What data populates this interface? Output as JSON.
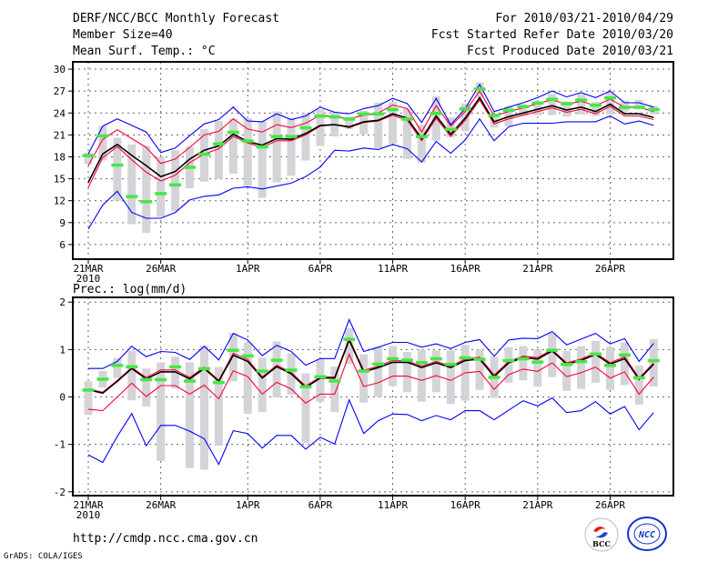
{
  "header": {
    "title": "DERF/NCC/BCC Monthly Forecast",
    "member_size": "Member Size=40",
    "period": "For 2010/03/21-2010/04/29",
    "started": "Fcst Started Refer Date 2010/03/20",
    "produced": "Fcst Produced Date 2010/03/21"
  },
  "footer": {
    "url": "http://cmdp.ncc.cma.gov.cn",
    "credit": "GrADS: COLA/IGES",
    "logo_bcc": "BCC",
    "logo_ncc": "NCC"
  },
  "colors": {
    "max_min": "#0000ff",
    "spread": "#ff0033",
    "mean": "#000000",
    "obs": "#44e844",
    "range": "#d4d4d8"
  },
  "chart_data": [
    {
      "type": "line",
      "title": "Mean Surf. Temp.: °C",
      "ylabel": "°C",
      "ylim": [
        4,
        31
      ],
      "yticks": [
        6,
        9,
        12,
        15,
        18,
        21,
        24,
        27,
        30
      ],
      "x_tick_days": [
        0,
        5,
        11,
        16,
        21,
        26,
        31,
        36
      ],
      "x_tick_labels": [
        "21MAR",
        "26MAR",
        "1APR",
        "6APR",
        "11APR",
        "16APR",
        "21APR",
        "26APR"
      ],
      "year_label": "2010",
      "grid": true,
      "series": [
        {
          "name": "max",
          "color": "#0000ff",
          "values": [
            18.4,
            22.2,
            23.2,
            22.3,
            21.4,
            18.6,
            19.2,
            20.9,
            22.5,
            23.1,
            24.8,
            22.9,
            22.8,
            23.9,
            23.1,
            23.6,
            24.8,
            24.1,
            23.9,
            24.6,
            25.0,
            26.0,
            25.3,
            22.7,
            26.0,
            22.4,
            24.6,
            27.9,
            24.2,
            24.8,
            25.4,
            26.1,
            27.0,
            26.2,
            26.8,
            26.1,
            27.0,
            25.4,
            25.4,
            24.8
          ]
        },
        {
          "name": "upper",
          "color": "#ff0033",
          "values": [
            16.8,
            20.4,
            21.7,
            20.5,
            19.3,
            17.1,
            17.7,
            19.3,
            21.0,
            21.5,
            23.2,
            21.8,
            21.4,
            22.4,
            22.0,
            22.6,
            23.7,
            23.5,
            23.2,
            23.7,
            24.0,
            25.1,
            24.6,
            21.4,
            25.0,
            22.2,
            24.2,
            27.0,
            23.6,
            24.2,
            24.7,
            25.3,
            25.8,
            25.2,
            25.6,
            25.0,
            25.9,
            24.8,
            24.8,
            24.2
          ]
        },
        {
          "name": "mean",
          "color": "#000000",
          "values": [
            14.5,
            18.4,
            19.7,
            18.2,
            16.8,
            15.3,
            16.0,
            17.7,
            18.9,
            19.5,
            21.1,
            20.1,
            19.6,
            20.5,
            20.4,
            21.2,
            22.3,
            22.4,
            22.1,
            22.8,
            23.0,
            23.9,
            23.3,
            20.5,
            23.6,
            21.1,
            23.3,
            26.1,
            22.8,
            23.5,
            24.0,
            24.5,
            25.0,
            24.4,
            24.8,
            24.2,
            25.2,
            23.9,
            23.9,
            23.4
          ]
        },
        {
          "name": "lower",
          "color": "#ff0033",
          "values": [
            13.8,
            17.9,
            19.4,
            17.6,
            15.9,
            14.7,
            15.5,
            17.2,
            18.4,
            19.1,
            20.8,
            19.9,
            19.3,
            20.2,
            20.2,
            21.0,
            22.2,
            22.4,
            22.0,
            22.7,
            22.9,
            23.7,
            23.0,
            20.2,
            23.3,
            20.8,
            23.0,
            25.8,
            22.5,
            23.2,
            23.7,
            24.2,
            24.7,
            24.1,
            24.5,
            23.9,
            24.9,
            23.6,
            23.6,
            23.1
          ]
        },
        {
          "name": "min",
          "color": "#0000ff",
          "values": [
            8.1,
            11.4,
            13.3,
            10.4,
            9.6,
            9.6,
            10.4,
            12.1,
            12.6,
            12.8,
            13.7,
            13.9,
            13.6,
            14.0,
            14.4,
            15.3,
            16.6,
            18.9,
            18.8,
            19.2,
            19.0,
            19.7,
            19.1,
            17.3,
            20.1,
            18.5,
            20.3,
            23.2,
            20.2,
            22.1,
            22.6,
            22.6,
            22.6,
            22.8,
            22.8,
            22.8,
            23.6,
            22.5,
            22.9,
            22.3
          ]
        }
      ],
      "obs": [
        18.2,
        20.9,
        16.9,
        12.6,
        11.9,
        13.0,
        14.2,
        16.6,
        18.4,
        19.8,
        21.4,
        20.2,
        19.4,
        20.8,
        20.8,
        22.0,
        23.6,
        23.5,
        23.2,
        23.9,
        23.9,
        24.5,
        23.2,
        20.8,
        24.0,
        21.8,
        24.6,
        27.3,
        23.7,
        24.4,
        24.9,
        25.4,
        25.9,
        25.3,
        25.8,
        25.1,
        26.1,
        24.8,
        24.8,
        24.5
      ],
      "ranges": [
        [
          17.0,
          18.6
        ],
        [
          17.5,
          22.2
        ],
        [
          12.0,
          20.6
        ],
        [
          8.8,
          19.7
        ],
        [
          7.6,
          19.5
        ],
        [
          9.8,
          18.0
        ],
        [
          10.6,
          18.9
        ],
        [
          13.7,
          19.4
        ],
        [
          14.6,
          21.8
        ],
        [
          15.0,
          22.9
        ],
        [
          15.7,
          23.2
        ],
        [
          14.0,
          23.3
        ],
        [
          12.4,
          22.8
        ],
        [
          14.5,
          24.2
        ],
        [
          15.4,
          23.3
        ],
        [
          17.5,
          24.0
        ],
        [
          19.5,
          24.5
        ],
        [
          20.8,
          24.2
        ],
        [
          21.8,
          23.5
        ],
        [
          21.1,
          24.3
        ],
        [
          19.2,
          25.4
        ],
        [
          19.8,
          25.5
        ],
        [
          17.7,
          24.6
        ],
        [
          17.2,
          22.4
        ],
        [
          20.2,
          26.3
        ],
        [
          20.7,
          23.4
        ],
        [
          21.5,
          25.3
        ],
        [
          26.1,
          28.2
        ],
        [
          22.0,
          23.9
        ],
        [
          22.2,
          24.9
        ],
        [
          23.6,
          25.2
        ],
        [
          23.7,
          25.5
        ],
        [
          23.7,
          26.6
        ],
        [
          23.5,
          25.6
        ],
        [
          23.8,
          26.6
        ],
        [
          23.6,
          25.5
        ],
        [
          23.8,
          26.9
        ],
        [
          24.2,
          25.7
        ],
        [
          24.6,
          25.8
        ],
        [
          23.8,
          25.0
        ]
      ]
    },
    {
      "type": "line",
      "title": "Prec.: log(mm/d)",
      "ylabel": "log(mm/d)",
      "ylim": [
        -2.08,
        2.1
      ],
      "yticks": [
        -2,
        -1,
        0,
        1,
        2
      ],
      "x_tick_days": [
        0,
        5,
        11,
        16,
        21,
        26,
        31,
        36
      ],
      "x_tick_labels": [
        "21MAR",
        "26MAR",
        "1APR",
        "6APR",
        "11APR",
        "16APR",
        "21APR",
        "26APR"
      ],
      "year_label": "2010",
      "grid": true,
      "series": [
        {
          "name": "max",
          "color": "#0000ff",
          "values": [
            0.6,
            0.6,
            0.75,
            1.07,
            0.85,
            0.96,
            0.94,
            0.79,
            1.07,
            0.78,
            1.34,
            1.2,
            0.87,
            1.09,
            0.96,
            0.67,
            0.81,
            0.81,
            1.63,
            0.96,
            1.05,
            1.15,
            1.15,
            1.05,
            1.12,
            1.02,
            1.15,
            1.21,
            0.86,
            1.2,
            1.24,
            1.23,
            1.38,
            1.1,
            1.22,
            1.34,
            1.12,
            1.23,
            0.75,
            1.13
          ]
        },
        {
          "name": "upper",
          "color": "#ff0033",
          "values": [
            0.17,
            0.1,
            0.35,
            0.62,
            0.41,
            0.57,
            0.57,
            0.41,
            0.63,
            0.35,
            0.92,
            0.79,
            0.42,
            0.67,
            0.52,
            0.23,
            0.42,
            0.42,
            1.23,
            0.56,
            0.65,
            0.77,
            0.76,
            0.65,
            0.75,
            0.65,
            0.8,
            0.84,
            0.46,
            0.75,
            0.86,
            0.83,
            1.0,
            0.72,
            0.8,
            0.93,
            0.72,
            0.85,
            0.4,
            0.72
          ]
        },
        {
          "name": "mean",
          "color": "#000000",
          "values": [
            0.15,
            0.08,
            0.33,
            0.6,
            0.38,
            0.53,
            0.53,
            0.38,
            0.6,
            0.33,
            0.88,
            0.75,
            0.4,
            0.64,
            0.49,
            0.2,
            0.4,
            0.4,
            1.2,
            0.53,
            0.62,
            0.73,
            0.73,
            0.62,
            0.72,
            0.62,
            0.77,
            0.8,
            0.43,
            0.72,
            0.83,
            0.8,
            0.97,
            0.69,
            0.77,
            0.9,
            0.69,
            0.81,
            0.37,
            0.69
          ]
        },
        {
          "name": "lower",
          "color": "#ff0033",
          "values": [
            -0.26,
            -0.29,
            0.0,
            0.29,
            0.01,
            0.24,
            0.24,
            0.06,
            0.25,
            -0.04,
            0.55,
            0.43,
            0.06,
            0.31,
            0.17,
            -0.13,
            0.06,
            0.06,
            0.9,
            0.22,
            0.3,
            0.44,
            0.44,
            0.35,
            0.45,
            0.35,
            0.51,
            0.54,
            0.16,
            0.47,
            0.59,
            0.54,
            0.72,
            0.43,
            0.51,
            0.63,
            0.4,
            0.53,
            0.06,
            0.42
          ]
        },
        {
          "name": "min",
          "color": "#0000ff",
          "values": [
            -1.22,
            -1.38,
            -0.83,
            -0.35,
            -1.03,
            -0.6,
            -0.6,
            -0.72,
            -0.88,
            -1.42,
            -0.71,
            -0.77,
            -1.08,
            -0.81,
            -0.81,
            -1.1,
            -0.85,
            -0.99,
            -0.06,
            -0.77,
            -0.5,
            -0.36,
            -0.37,
            -0.5,
            -0.39,
            -0.48,
            -0.29,
            -0.29,
            -0.48,
            -0.28,
            -0.08,
            -0.19,
            -0.02,
            -0.33,
            -0.29,
            -0.1,
            -0.36,
            -0.2,
            -0.69,
            -0.33
          ]
        }
      ],
      "obs": [
        0.15,
        0.38,
        0.67,
        0.64,
        0.37,
        0.37,
        0.64,
        0.34,
        0.6,
        0.31,
        0.99,
        0.87,
        0.55,
        0.78,
        0.57,
        0.22,
        0.43,
        0.34,
        1.22,
        0.55,
        0.7,
        0.81,
        0.78,
        0.73,
        0.81,
        0.69,
        0.83,
        0.8,
        0.42,
        0.77,
        0.81,
        0.74,
        0.99,
        0.69,
        0.75,
        0.91,
        0.67,
        0.89,
        0.41,
        0.77
      ],
      "ranges": [
        [
          -0.38,
          0.33
        ],
        [
          0.2,
          0.55
        ],
        [
          0.4,
          0.82
        ],
        [
          -0.07,
          0.97
        ],
        [
          -0.2,
          0.6
        ],
        [
          -1.35,
          0.73
        ],
        [
          0.18,
          0.85
        ],
        [
          -1.5,
          0.73
        ],
        [
          -1.53,
          1.08
        ],
        [
          -1.03,
          0.63
        ],
        [
          0.33,
          1.35
        ],
        [
          -0.35,
          1.15
        ],
        [
          -0.32,
          0.83
        ],
        [
          -0.01,
          1.17
        ],
        [
          0.05,
          0.92
        ],
        [
          -0.97,
          0.5
        ],
        [
          -0.1,
          0.8
        ],
        [
          -0.32,
          0.64
        ],
        [
          0.7,
          1.45
        ],
        [
          -0.12,
          0.9
        ],
        [
          0.0,
          1.05
        ],
        [
          0.23,
          1.07
        ],
        [
          0.1,
          0.95
        ],
        [
          -0.1,
          1.0
        ],
        [
          0.1,
          0.98
        ],
        [
          -0.15,
          0.98
        ],
        [
          -0.08,
          1.1
        ],
        [
          0.15,
          1.0
        ],
        [
          -0.02,
          0.85
        ],
        [
          0.3,
          1.05
        ],
        [
          0.35,
          1.07
        ],
        [
          0.22,
          1.0
        ],
        [
          0.42,
          1.35
        ],
        [
          0.13,
          0.97
        ],
        [
          0.17,
          1.07
        ],
        [
          0.3,
          1.18
        ],
        [
          0.15,
          1.05
        ],
        [
          0.25,
          1.15
        ],
        [
          -0.16,
          0.66
        ],
        [
          0.22,
          1.22
        ]
      ]
    }
  ]
}
